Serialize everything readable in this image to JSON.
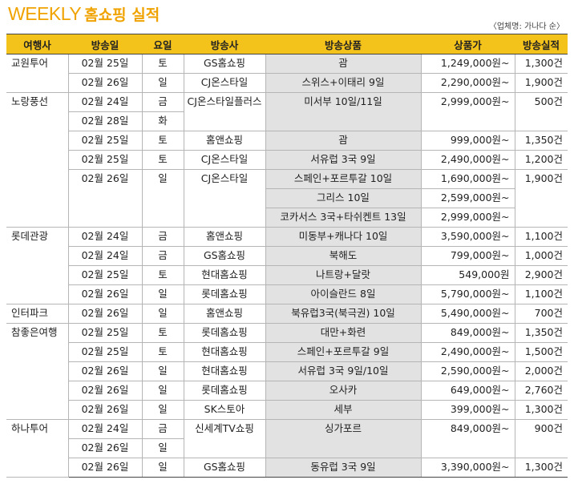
{
  "title_en": "WEEKLY",
  "title_ko": "홈쇼핑 실적",
  "source_note": "〈업체명: 가나다 순〉",
  "headers": [
    "여행사",
    "방송일",
    "요일",
    "방송사",
    "방송상품",
    "상품가",
    "방송실적"
  ],
  "rows": [
    {
      "agency": "교원투어",
      "date": "02월 25일",
      "day": "토",
      "broadcaster": "GS홈쇼핑",
      "product": "괌",
      "price": "1,249,000원~",
      "result": "1,300건"
    },
    {
      "date": "02월 26일",
      "day": "일",
      "broadcaster": "CJ온스타일",
      "product": "스위스+이태리 9일",
      "price": "2,290,000원~",
      "result": "1,900건"
    },
    {
      "agency": "노랑풍선",
      "date": "02월 24일",
      "day": "금",
      "broadcaster": "CJ온스타일플러스",
      "product": "미서부 10일/11일",
      "price": "2,999,000원~",
      "result": "500건"
    },
    {
      "date": "02월 28일",
      "day": "화"
    },
    {
      "date": "02월 25일",
      "day": "토",
      "broadcaster": "홈앤쇼핑",
      "product": "괌",
      "price": "999,000원~",
      "result": "1,350건"
    },
    {
      "date": "02월 25일",
      "day": "토",
      "broadcaster": "CJ온스타일",
      "product": "서유럽 3국 9일",
      "price": "2,490,000원~",
      "result": "1,200건"
    },
    {
      "date": "02월 26일",
      "day": "일",
      "broadcaster": "CJ온스타일",
      "product": "스페인+포르투갈 10일",
      "price": "1,690,000원~",
      "result": "1,900건"
    },
    {
      "product": "그리스 10일",
      "price": "2,599,000원~"
    },
    {
      "product": "코카서스 3국+타쉬켄트 13일",
      "price": "2,999,000원~"
    },
    {
      "agency": "롯데관광",
      "date": "02월 24일",
      "day": "금",
      "broadcaster": "홈앤쇼핑",
      "product": "미동부+캐나다 10일",
      "price": "3,590,000원~",
      "result": "1,100건"
    },
    {
      "date": "02월 24일",
      "day": "금",
      "broadcaster": "GS홈쇼핑",
      "product": "북해도",
      "price": "799,000원~",
      "result": "1,000건"
    },
    {
      "date": "02월 25일",
      "day": "토",
      "broadcaster": "현대홈쇼핑",
      "product": "나트랑+달랏",
      "price": "549,000원",
      "result": "2,900건"
    },
    {
      "date": "02월 26일",
      "day": "일",
      "broadcaster": "롯데홈쇼핑",
      "product": "아이슬란드 8일",
      "price": "5,790,000원~",
      "result": "1,100건"
    },
    {
      "agency": "인터파크",
      "date": "02월 26일",
      "day": "일",
      "broadcaster": "홈앤쇼핑",
      "product": "북유럽3국(북극권) 10일",
      "price": "5,490,000원~",
      "result": "700건"
    },
    {
      "agency": "참좋은여행",
      "date": "02월 25일",
      "day": "토",
      "broadcaster": "롯데홈쇼핑",
      "product": "대만+화련",
      "price": "849,000원~",
      "result": "1,350건"
    },
    {
      "date": "02월 25일",
      "day": "토",
      "broadcaster": "현대홈쇼핑",
      "product": "스페인+포르투갈 9일",
      "price": "2,490,000원~",
      "result": "1,500건"
    },
    {
      "date": "02월 26일",
      "day": "일",
      "broadcaster": "현대홈쇼핑",
      "product": "서유럽 3국 9일/10일",
      "price": "2,590,000원~",
      "result": "2,000건"
    },
    {
      "date": "02월 26일",
      "day": "일",
      "broadcaster": "롯데홈쇼핑",
      "product": "오사카",
      "price": "649,000원~",
      "result": "2,760건"
    },
    {
      "date": "02월 26일",
      "day": "일",
      "broadcaster": "SK스토아",
      "product": "세부",
      "price": "399,000원~",
      "result": "1,300건"
    },
    {
      "agency": "하나투어",
      "date": "02월 24일",
      "day": "금",
      "broadcaster": "신세계TV쇼핑",
      "product": "싱가포르",
      "price": "849,000원~",
      "result": "900건"
    },
    {
      "date": "02월 26일",
      "day": "일"
    },
    {
      "date": "02월 26일",
      "day": "일",
      "broadcaster": "GS홈쇼핑",
      "product": "동유럽 3국 9일",
      "price": "3,390,000원~",
      "result": "1,300건"
    }
  ]
}
